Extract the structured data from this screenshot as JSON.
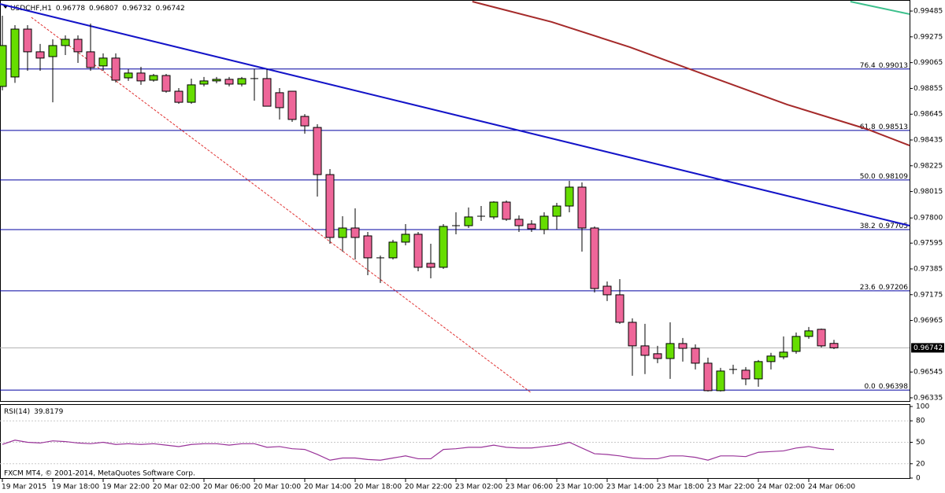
{
  "chart_data": [
    {
      "type": "candlestick",
      "symbol": "USDCHF,H1",
      "categories": [
        "19 Mar 2015",
        null,
        null,
        null,
        "19 Mar 18:00",
        null,
        null,
        null,
        "19 Mar 22:00",
        null,
        null,
        null,
        "20 Mar 02:00",
        null,
        null,
        null,
        "20 Mar 06:00",
        null,
        null,
        null,
        "20 Mar 10:00",
        null,
        null,
        null,
        "20 Mar 14:00",
        null,
        null,
        null,
        "20 Mar 18:00",
        null,
        null,
        null,
        "20 Mar 22:00",
        null,
        null,
        null,
        "23 Mar 02:00",
        null,
        null,
        null,
        "23 Mar 06:00",
        null,
        null,
        null,
        "23 Mar 10:00",
        null,
        null,
        null,
        "23 Mar 14:00",
        null,
        null,
        null,
        "23 Mar 18:00",
        null,
        null,
        null,
        "23 Mar 22:00",
        null,
        null,
        null,
        "24 Mar 02:00",
        null,
        null,
        null,
        "24 Mar 06:00",
        null,
        null
      ],
      "open": [
        0.98871,
        0.98948,
        0.99338,
        0.99153,
        0.99114,
        0.99204,
        0.99255,
        0.99153,
        0.99038,
        0.99102,
        0.98941,
        0.9898,
        0.98922,
        0.9896,
        0.98832,
        0.98742,
        0.9889,
        0.98916,
        0.98929,
        0.9889,
        0.98935,
        0.98935,
        0.9882,
        0.98832,
        0.98627,
        0.98537,
        0.98153,
        0.97641,
        0.97718,
        0.97654,
        0.97475,
        0.97475,
        0.97603,
        0.97667,
        0.9743,
        0.97398,
        0.97731,
        0.97737,
        0.97808,
        0.97808,
        0.97929,
        0.97789,
        0.9775,
        0.97705,
        0.97814,
        0.97897,
        0.98051,
        0.97718,
        0.97244,
        0.97174,
        0.9695,
        0.96758,
        0.96694,
        0.96655,
        0.96777,
        0.96738,
        0.96617,
        0.96393,
        0.9656,
        0.9656,
        0.96489,
        0.9663,
        0.96668,
        0.96713,
        0.96835,
        0.96893,
        0.96778
      ],
      "high": [
        0.99447,
        0.9937,
        0.9937,
        0.99217,
        0.99255,
        0.99287,
        0.99287,
        0.99383,
        0.9914,
        0.9914,
        0.99012,
        0.99031,
        0.98973,
        0.98973,
        0.98858,
        0.98935,
        0.98948,
        0.98948,
        0.98948,
        0.98948,
        0.99012,
        0.99012,
        0.98858,
        0.98832,
        0.98646,
        0.98563,
        0.98198,
        0.97814,
        0.97878,
        0.97686,
        0.97494,
        0.97622,
        0.9775,
        0.97686,
        0.9759,
        0.9775,
        0.97846,
        0.97885,
        0.97897,
        0.97936,
        0.97942,
        0.97821,
        0.97782,
        0.97846,
        0.97923,
        0.98102,
        0.98089,
        0.97731,
        0.97282,
        0.97302,
        0.96982,
        0.96937,
        0.96758,
        0.9695,
        0.96822,
        0.9677,
        0.96662,
        0.96579,
        0.96604,
        0.96585,
        0.96643,
        0.96701,
        0.96835,
        0.96867,
        0.96912,
        0.96899,
        0.96807
      ],
      "low": [
        0.98839,
        0.989,
        0.98999,
        0.98999,
        0.98742,
        0.99127,
        0.99063,
        0.98999,
        0.98999,
        0.98903,
        0.98916,
        0.98884,
        0.9891,
        0.9882,
        0.9873,
        0.9873,
        0.98871,
        0.98897,
        0.98871,
        0.98871,
        0.98755,
        0.9871,
        0.98602,
        0.98582,
        0.98486,
        0.97974,
        0.9759,
        0.97526,
        0.97462,
        0.97334,
        0.9727,
        0.97462,
        0.97577,
        0.97366,
        0.97308,
        0.97385,
        0.97667,
        0.97718,
        0.97776,
        0.97789,
        0.97776,
        0.97686,
        0.97686,
        0.97667,
        0.97705,
        0.97846,
        0.97526,
        0.97193,
        0.97123,
        0.96937,
        0.96515,
        0.96528,
        0.96617,
        0.96489,
        0.9663,
        0.96566,
        0.96387,
        0.96387,
        0.96528,
        0.96438,
        0.96425,
        0.96566,
        0.96649,
        0.96694,
        0.96816,
        0.96745,
        0.96732
      ],
      "close": [
        0.99204,
        0.99338,
        0.99153,
        0.99102,
        0.99204,
        0.99255,
        0.99153,
        0.99025,
        0.99102,
        0.98922,
        0.9898,
        0.98916,
        0.9896,
        0.98832,
        0.98742,
        0.98884,
        0.98916,
        0.98929,
        0.9889,
        0.98935,
        0.98929,
        0.9871,
        0.98698,
        0.98602,
        0.9855,
        0.98153,
        0.97641,
        0.97718,
        0.97641,
        0.97475,
        0.97475,
        0.97603,
        0.97667,
        0.97398,
        0.97398,
        0.97731,
        0.97737,
        0.97808,
        0.97814,
        0.97929,
        0.97789,
        0.97737,
        0.97712,
        0.97814,
        0.97897,
        0.98051,
        0.97718,
        0.97225,
        0.97174,
        0.9695,
        0.96758,
        0.96681,
        0.96655,
        0.96777,
        0.96738,
        0.96617,
        0.96393,
        0.96553,
        0.96566,
        0.96489,
        0.9663,
        0.96675,
        0.96707,
        0.96835,
        0.9688,
        0.96758,
        0.96742
      ],
      "up_color": "#66dd00",
      "down_color": "#ee6699",
      "ylim": [
        0.96309,
        0.99575
      ],
      "yticks": [
        0.99485,
        0.99275,
        0.99065,
        0.98855,
        0.98645,
        0.98435,
        0.98225,
        0.98015,
        {
          "value": 0.978,
          "label": "0.97800"
        },
        0.97595,
        0.97385,
        0.97175,
        0.96965,
        0.96545,
        0.96335
      ],
      "fib_color": "#0000a0",
      "fib_levels": [
        {
          "level": "76.4",
          "price": 0.99013
        },
        {
          "level": "61.8",
          "price": 0.98513
        },
        {
          "level": "50.0",
          "price": 0.98109
        },
        {
          "level": "38.2",
          "price": 0.97705
        },
        {
          "level": "23.6",
          "price": 0.97206
        },
        {
          "level": "0.0",
          "price": 0.96398
        }
      ],
      "overlays": [
        {
          "color": "#1414c8",
          "dash": false,
          "x": [
            -0.2,
            72
          ],
          "y": [
            0.99543,
            0.97737
          ]
        },
        {
          "color": "#a52a2a",
          "dash": false,
          "x": [
            37.3,
            43.6,
            49.8,
            56.1,
            62.3,
            68.6,
            72
          ],
          "y": [
            0.99562,
            0.99396,
            0.99191,
            0.98954,
            0.98723,
            0.98524,
            0.9839
          ]
        },
        {
          "color": "#3cc08c",
          "dash": false,
          "x": [
            67.3,
            72
          ],
          "y": [
            0.99562,
            0.9946
          ]
        },
        {
          "color": "#e03030",
          "dash": true,
          "x": [
            2.3,
            42
          ],
          "y": [
            0.99434,
            0.96374
          ]
        }
      ]
    },
    {
      "type": "line",
      "name": "RSI(14)",
      "values": [
        47,
        53,
        50,
        49,
        52,
        51,
        49,
        48,
        50,
        47,
        48,
        47,
        48,
        46,
        44,
        47,
        48,
        48,
        46,
        48,
        48,
        43,
        44,
        41,
        40,
        33,
        25,
        28,
        28,
        26,
        25,
        28,
        31,
        27,
        27,
        40,
        41,
        43,
        43,
        46,
        43,
        42,
        42,
        44,
        46,
        50,
        42,
        34,
        33,
        31,
        28,
        27,
        27,
        31,
        31,
        29,
        25,
        31,
        31,
        30,
        36,
        37,
        38,
        42,
        44,
        41,
        39.8179
      ],
      "color": "#993399",
      "ylim": [
        0,
        100
      ],
      "yticks": [
        100,
        80,
        50,
        20,
        0
      ],
      "levels": [
        80,
        50,
        20
      ]
    }
  ],
  "footer": "FXCM MT4, © 2001-2014, MetaQuotes Software Corp."
}
